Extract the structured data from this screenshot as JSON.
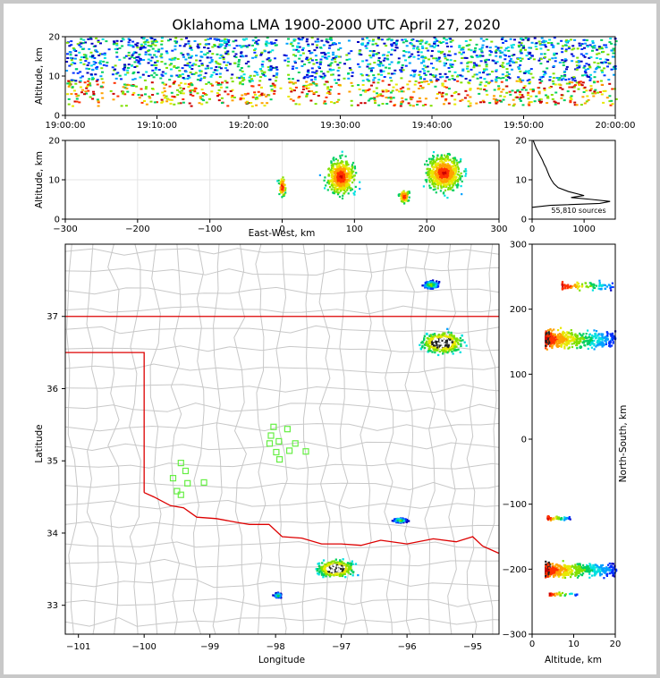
{
  "title": "Oklahoma LMA 1900-2000 UTC April 27, 2020",
  "chart_data": [
    {
      "panel": "time-altitude",
      "type": "heatmap",
      "ylabel": "Altitude, km",
      "xlim": [
        "19:00:00",
        "20:00:00"
      ],
      "ylim": [
        0,
        20
      ],
      "xticks": [
        "19:00:00",
        "19:10:00",
        "19:20:00",
        "19:30:00",
        "19:40:00",
        "19:50:00",
        "20:00:00"
      ],
      "yticks": [
        "0",
        "10",
        "20"
      ]
    },
    {
      "panel": "east-west-altitude",
      "type": "heatmap",
      "xlabel": "East-West, km",
      "ylabel": "Altitude, km",
      "xlim": [
        -300,
        300
      ],
      "ylim": [
        0,
        20
      ],
      "xticks": [
        "−300",
        "−200",
        "−100",
        "0",
        "100",
        "200",
        "300"
      ],
      "yticks": [
        "0",
        "10",
        "20"
      ],
      "clusters": [
        {
          "x": [
            -10,
            8
          ],
          "z": [
            4,
            13
          ]
        },
        {
          "x": [
            45,
            115
          ],
          "z": [
            3,
            19
          ]
        },
        {
          "x": [
            155,
            180
          ],
          "z": [
            3,
            9
          ]
        },
        {
          "x": [
            180,
            265
          ],
          "z": [
            4,
            20
          ]
        }
      ]
    },
    {
      "panel": "altitude-histogram",
      "type": "line",
      "xlim": [
        0,
        1600
      ],
      "ylim": [
        0,
        20
      ],
      "xticks": [
        "0",
        "1000"
      ],
      "yticks": [
        "0",
        "10",
        "20"
      ],
      "annotation": "55,810 sources",
      "points": [
        [
          0,
          3
        ],
        [
          350,
          3.5
        ],
        [
          1300,
          4
        ],
        [
          1500,
          4.5
        ],
        [
          1150,
          5
        ],
        [
          750,
          5.5
        ],
        [
          1000,
          6
        ],
        [
          700,
          7
        ],
        [
          500,
          8
        ],
        [
          420,
          9
        ],
        [
          370,
          10
        ],
        [
          330,
          11
        ],
        [
          300,
          12
        ],
        [
          270,
          13
        ],
        [
          230,
          14
        ],
        [
          200,
          15
        ],
        [
          160,
          16
        ],
        [
          120,
          17
        ],
        [
          80,
          18
        ],
        [
          50,
          19
        ],
        [
          20,
          20
        ]
      ]
    },
    {
      "panel": "plan-view",
      "type": "heatmap",
      "xlabel": "Longitude",
      "ylabel": "Latitude",
      "xlim": [
        -101.2,
        -94.6
      ],
      "ylim": [
        32.6,
        38.0
      ],
      "xticks": [
        "−101",
        "−100",
        "−99",
        "−98",
        "−97",
        "−96",
        "−95"
      ],
      "yticks": [
        "33",
        "34",
        "35",
        "36",
        "37"
      ],
      "stations": [
        {
          "lon": -98.03,
          "lat": 35.47
        },
        {
          "lon": -97.82,
          "lat": 35.44
        },
        {
          "lon": -98.07,
          "lat": 35.35
        },
        {
          "lon": -97.95,
          "lat": 35.27
        },
        {
          "lon": -98.09,
          "lat": 35.24
        },
        {
          "lon": -97.7,
          "lat": 35.24
        },
        {
          "lon": -97.79,
          "lat": 35.14
        },
        {
          "lon": -97.99,
          "lat": 35.12
        },
        {
          "lon": -97.54,
          "lat": 35.13
        },
        {
          "lon": -97.94,
          "lat": 35.02
        },
        {
          "lon": -99.44,
          "lat": 34.97
        },
        {
          "lon": -99.37,
          "lat": 34.86
        },
        {
          "lon": -99.56,
          "lat": 34.76
        },
        {
          "lon": -99.34,
          "lat": 34.69
        },
        {
          "lon": -99.09,
          "lat": 34.7
        },
        {
          "lon": -99.5,
          "lat": 34.58
        },
        {
          "lon": -99.44,
          "lat": 34.53
        }
      ],
      "clusters": [
        {
          "lon": -95.48,
          "lat": 36.65,
          "rx": 0.45,
          "ry": 0.22,
          "density": 1.0
        },
        {
          "lon": -95.65,
          "lat": 37.45,
          "rx": 0.17,
          "ry": 0.08,
          "density": 0.4
        },
        {
          "lon": -97.1,
          "lat": 33.52,
          "rx": 0.4,
          "ry": 0.18,
          "density": 1.0
        },
        {
          "lon": -97.98,
          "lat": 33.15,
          "rx": 0.08,
          "ry": 0.05,
          "density": 0.3
        },
        {
          "lon": -96.12,
          "lat": 34.19,
          "rx": 0.16,
          "ry": 0.05,
          "density": 0.3
        }
      ]
    },
    {
      "panel": "altitude-north-south",
      "type": "heatmap",
      "xlabel": "Altitude, km",
      "ylabel": "North-South, km",
      "xlim": [
        0,
        20
      ],
      "ylim": [
        -300,
        300
      ],
      "xticks": [
        "0",
        "10",
        "20"
      ],
      "yticks": [
        "−300",
        "−200",
        "−100",
        "0",
        "100",
        "200",
        "300"
      ]
    }
  ]
}
